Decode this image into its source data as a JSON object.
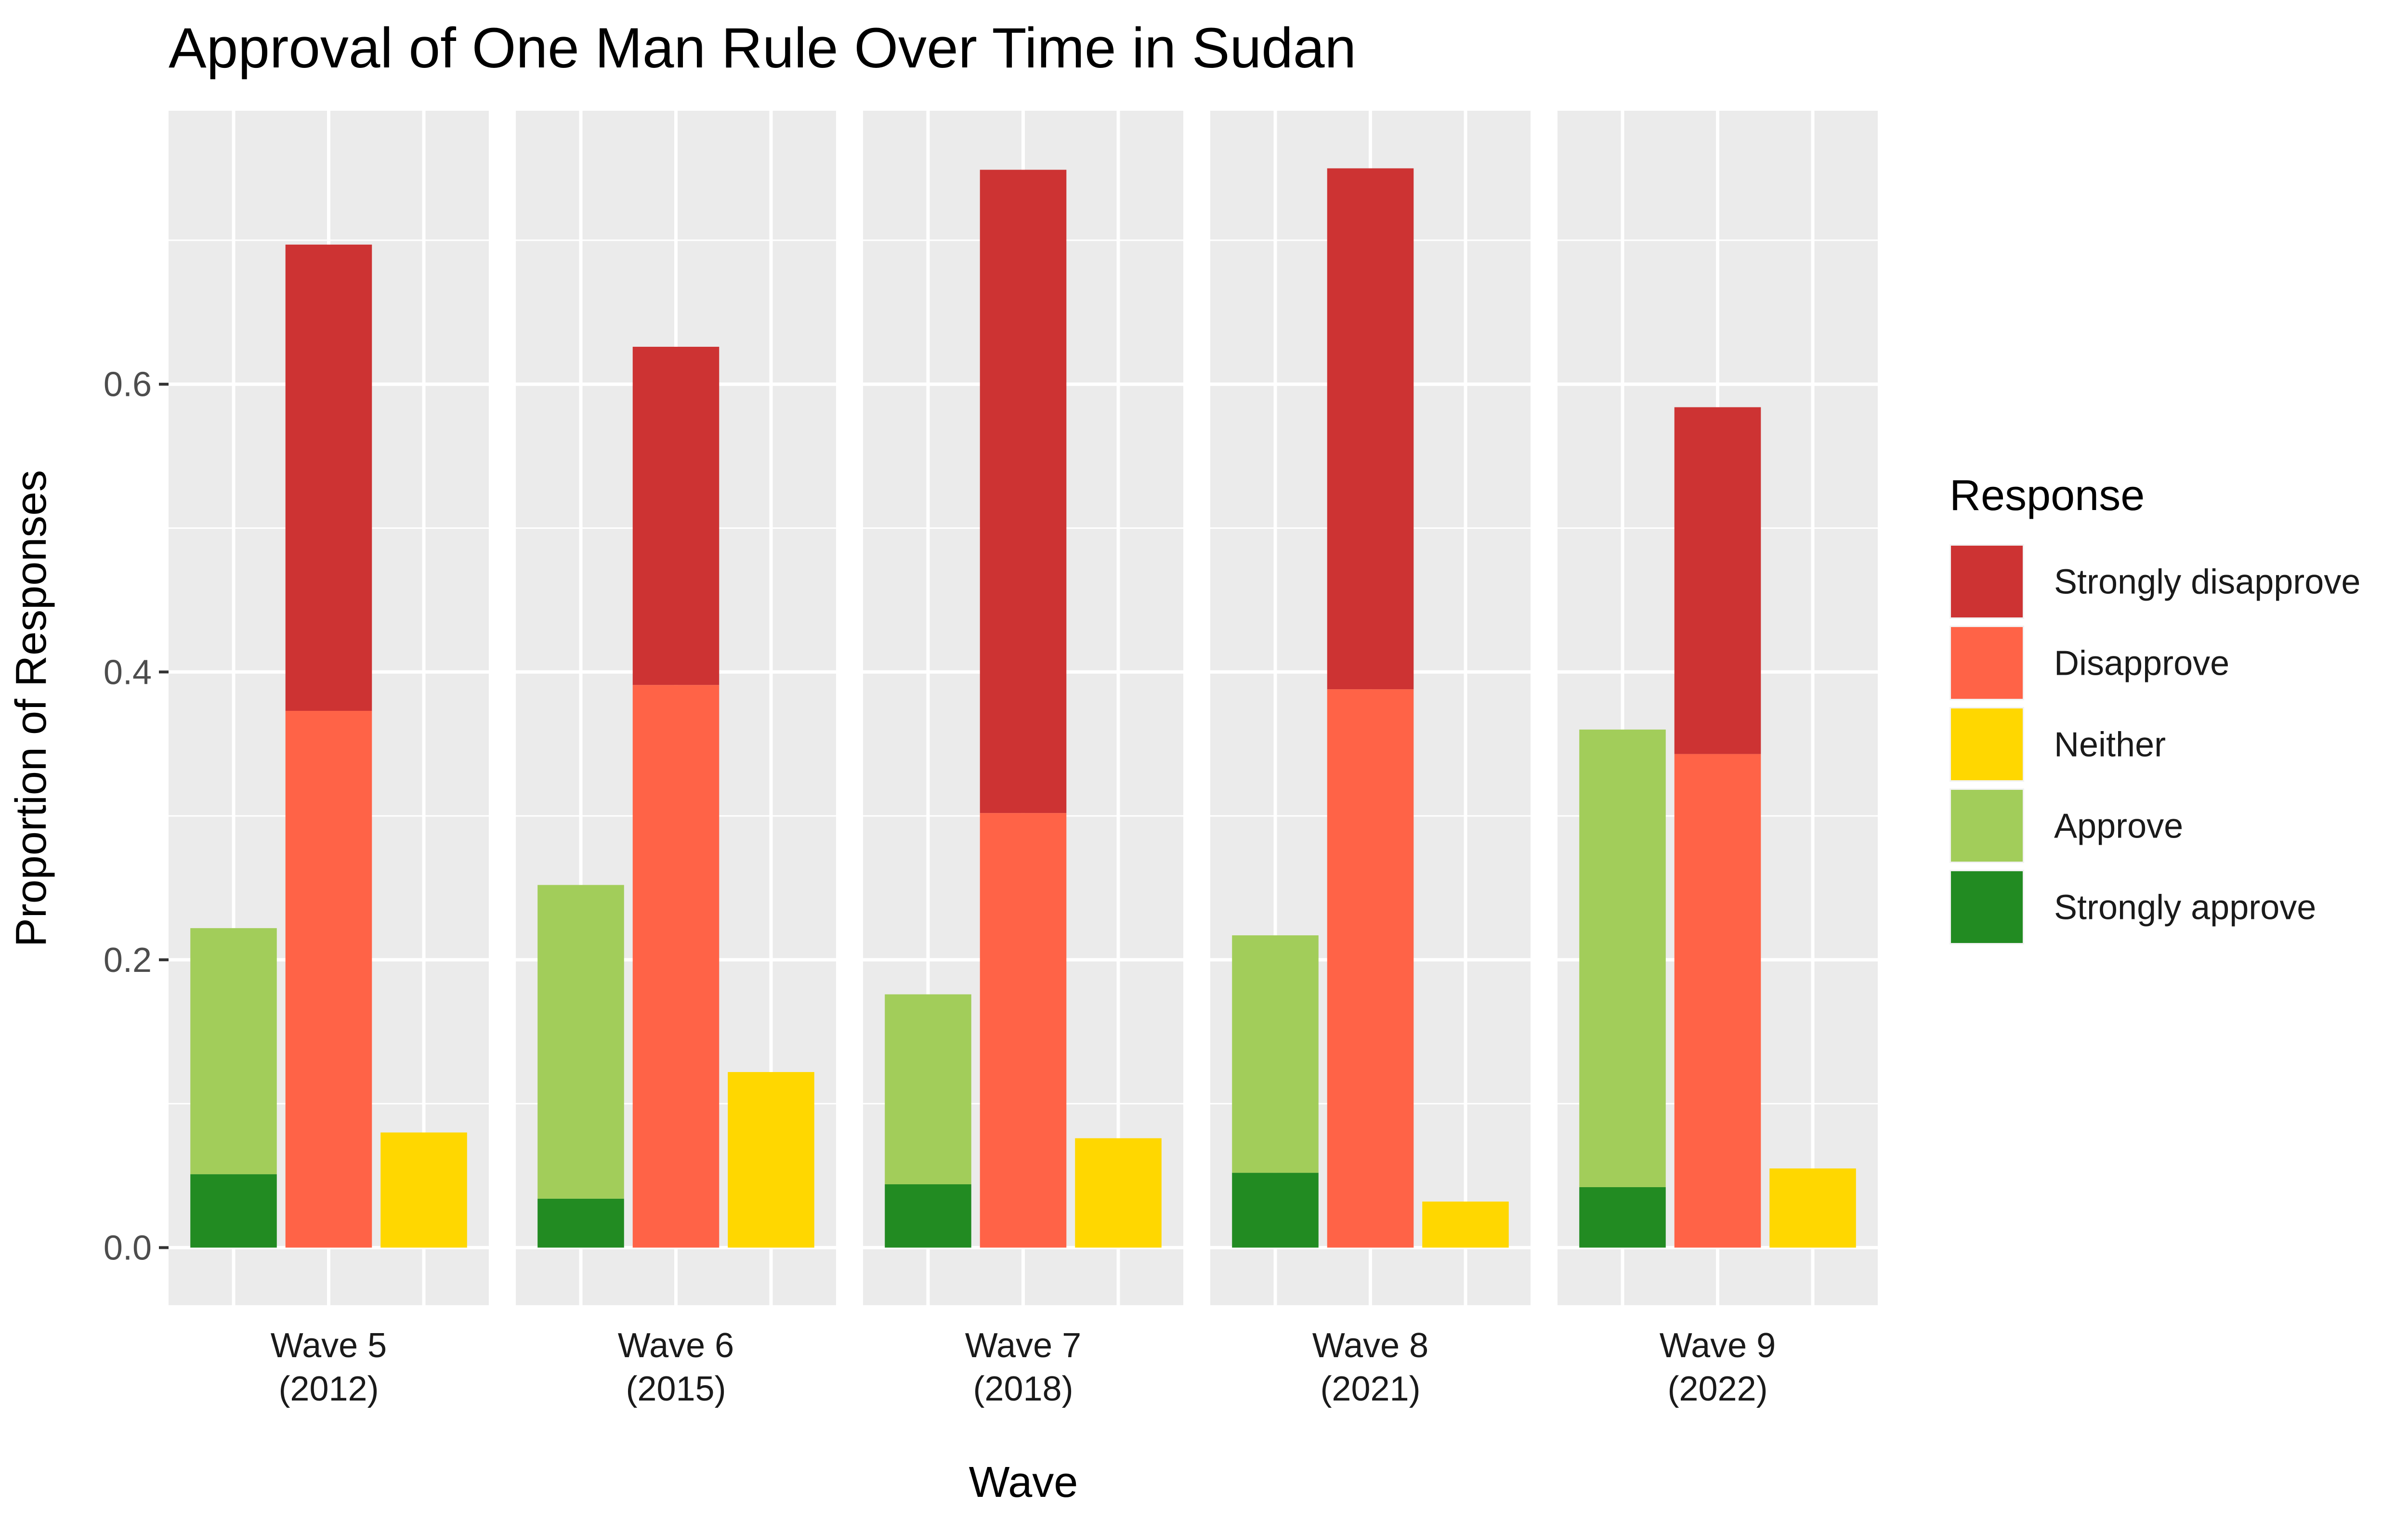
{
  "chart_data": {
    "type": "bar",
    "title": "Approval of One Man Rule Over Time in Sudan",
    "xlabel": "Wave",
    "ylabel": "Proportion of Responses",
    "ylim": [
      -0.04,
      0.79
    ],
    "yticks": [
      0.0,
      0.2,
      0.4,
      0.6
    ],
    "ytick_labels": [
      "0.0",
      "0.2",
      "0.4",
      "0.6"
    ],
    "grid": true,
    "legend": {
      "title": "Response",
      "position": "right",
      "items": [
        {
          "label": "Strongly disapprove",
          "color": "#cd3333"
        },
        {
          "label": "Disapprove",
          "color": "#ff6347"
        },
        {
          "label": "Neither",
          "color": "#ffd700"
        },
        {
          "label": "Approve",
          "color": "#a2cd5a"
        },
        {
          "label": "Strongly approve",
          "color": "#228b22"
        }
      ]
    },
    "groups": [
      "Approve (combined)",
      "Disapprove (combined)",
      "Neither"
    ],
    "facets": [
      {
        "label_line1": "Wave 5",
        "label_line2": "(2012)",
        "strongly_approve": 0.051,
        "approve": 0.171,
        "disapprove": 0.373,
        "strongly_disapprove": 0.324,
        "neither": 0.08
      },
      {
        "label_line1": "Wave 6",
        "label_line2": "(2015)",
        "strongly_approve": 0.034,
        "approve": 0.218,
        "disapprove": 0.391,
        "strongly_disapprove": 0.235,
        "neither": 0.122
      },
      {
        "label_line1": "Wave 7",
        "label_line2": "(2018)",
        "strongly_approve": 0.044,
        "approve": 0.132,
        "disapprove": 0.302,
        "strongly_disapprove": 0.447,
        "neither": 0.076
      },
      {
        "label_line1": "Wave 8",
        "label_line2": "(2021)",
        "strongly_approve": 0.052,
        "approve": 0.165,
        "disapprove": 0.388,
        "strongly_disapprove": 0.362,
        "neither": 0.032
      },
      {
        "label_line1": "Wave 9",
        "label_line2": "(2022)",
        "strongly_approve": 0.042,
        "approve": 0.318,
        "disapprove": 0.343,
        "strongly_disapprove": 0.241,
        "neither": 0.055
      }
    ]
  }
}
